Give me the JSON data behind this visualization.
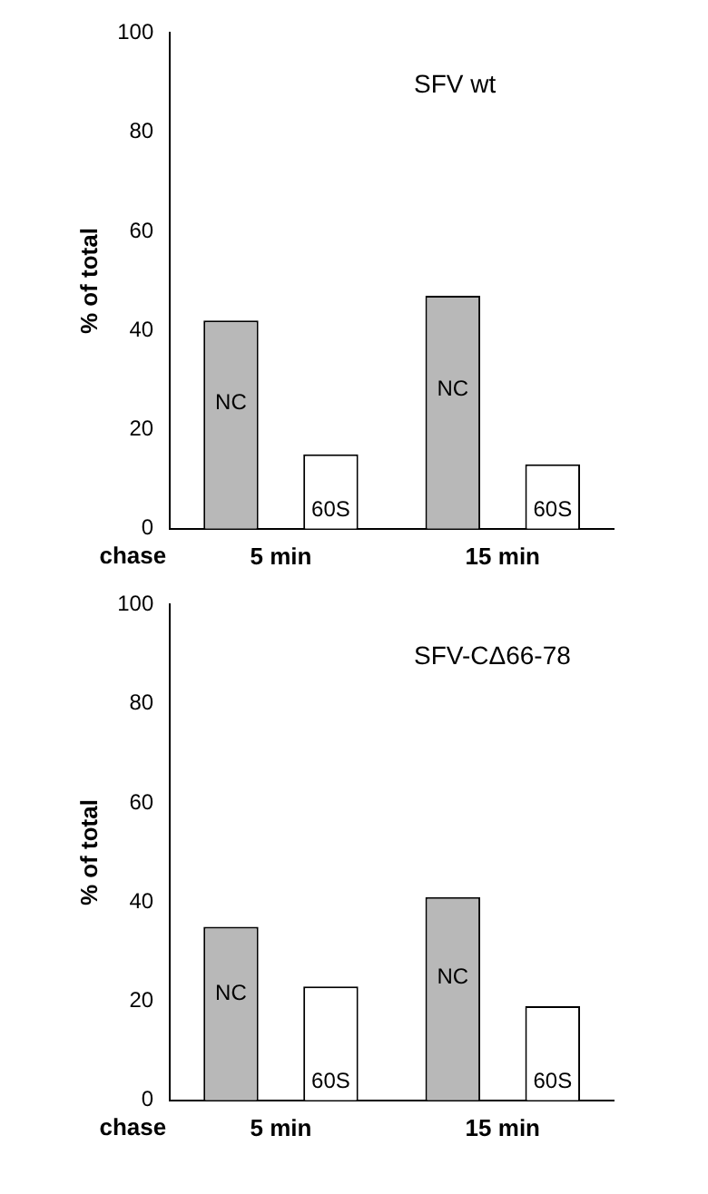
{
  "chart_data": [
    {
      "type": "bar",
      "ylabel": "% of total",
      "xlabel": "chase",
      "annotations": [
        "SFV wt"
      ],
      "categories": [
        "5 min",
        "15 min"
      ],
      "series": [
        {
          "name": "NC",
          "color": "#b8b8b8",
          "values": [
            42,
            47
          ]
        },
        {
          "name": "60S",
          "color": "#ffffff",
          "values": [
            15,
            13
          ]
        }
      ],
      "ylim": [
        0,
        100
      ],
      "yticks": [
        0,
        20,
        40,
        60,
        80,
        100
      ],
      "grid": false,
      "legend": false
    },
    {
      "type": "bar",
      "ylabel": "% of total",
      "xlabel": "chase",
      "annotations": [
        "SFV-CΔ66-78"
      ],
      "categories": [
        "5 min",
        "15 min"
      ],
      "series": [
        {
          "name": "NC",
          "color": "#b8b8b8",
          "values": [
            35,
            41
          ]
        },
        {
          "name": "60S",
          "color": "#ffffff",
          "values": [
            23,
            19
          ]
        }
      ],
      "ylim": [
        0,
        100
      ],
      "yticks": [
        0,
        20,
        40,
        60,
        80,
        100
      ],
      "grid": false,
      "legend": false
    }
  ]
}
